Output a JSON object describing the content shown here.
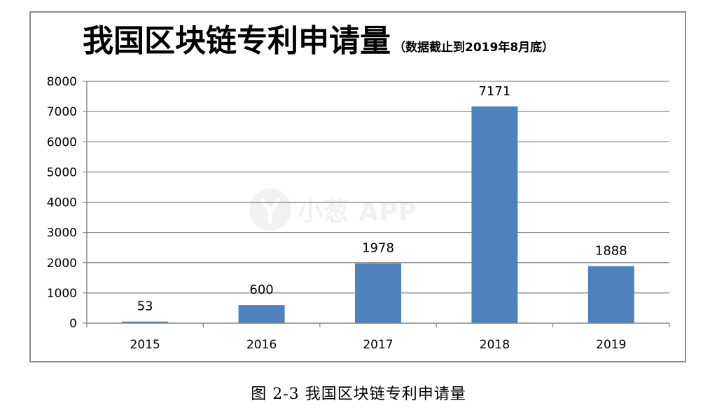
{
  "title": "我国区块链专利申请量",
  "subtitle": "（数据截止到2019年8月底）",
  "watermark": "小葱 APP",
  "caption": "图 2-3 我国区块链专利申请量",
  "colors": {
    "bar": "#4f81bd",
    "grid": "#868686",
    "axis": "#868686",
    "text": "#000000"
  },
  "chart_data": {
    "type": "bar",
    "title": "我国区块链专利申请量",
    "subtitle": "（数据截止到2019年8月底）",
    "categories": [
      "2015",
      "2016",
      "2017",
      "2018",
      "2019"
    ],
    "values": [
      53,
      600,
      1978,
      7171,
      1888
    ],
    "data_labels": [
      "53",
      "600",
      "1978",
      "7171",
      "1888"
    ],
    "ylim": [
      0,
      8000
    ],
    "yticks": [
      0,
      1000,
      2000,
      3000,
      4000,
      5000,
      6000,
      7000,
      8000
    ],
    "xlabel": "",
    "ylabel": "",
    "grid": true,
    "legend": "none"
  }
}
